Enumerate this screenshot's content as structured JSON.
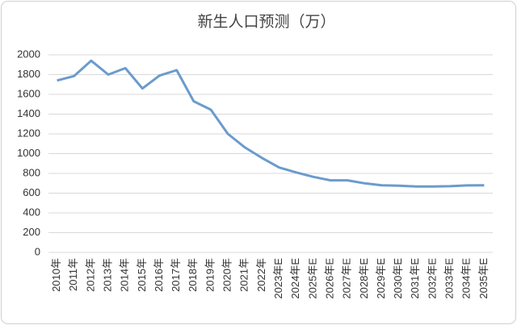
{
  "chart_data": {
    "type": "line",
    "title": "新生人口预测（万）",
    "categories": [
      "2010年",
      "2011年",
      "2012年",
      "2013年",
      "2014年",
      "2015年",
      "2016年",
      "2017年",
      "2018年",
      "2019年",
      "2020年",
      "2021年",
      "2022年",
      "2023年E",
      "2024年E",
      "2025年E",
      "2026年E",
      "2027年E",
      "2028年E",
      "2029年E",
      "2030年E",
      "2031年E",
      "2032年E",
      "2033年E",
      "2034年E",
      "2035年E"
    ],
    "values": [
      1740,
      1785,
      1940,
      1800,
      1865,
      1660,
      1790,
      1845,
      1530,
      1445,
      1200,
      1062,
      956,
      860,
      810,
      765,
      730,
      730,
      700,
      680,
      675,
      668,
      668,
      670,
      678,
      680
    ],
    "color": "#6b9bcd",
    "ylim": [
      0,
      2000
    ],
    "yticks": [
      0,
      200,
      400,
      600,
      800,
      1000,
      1200,
      1400,
      1600,
      1800,
      2000
    ],
    "grid": true
  }
}
